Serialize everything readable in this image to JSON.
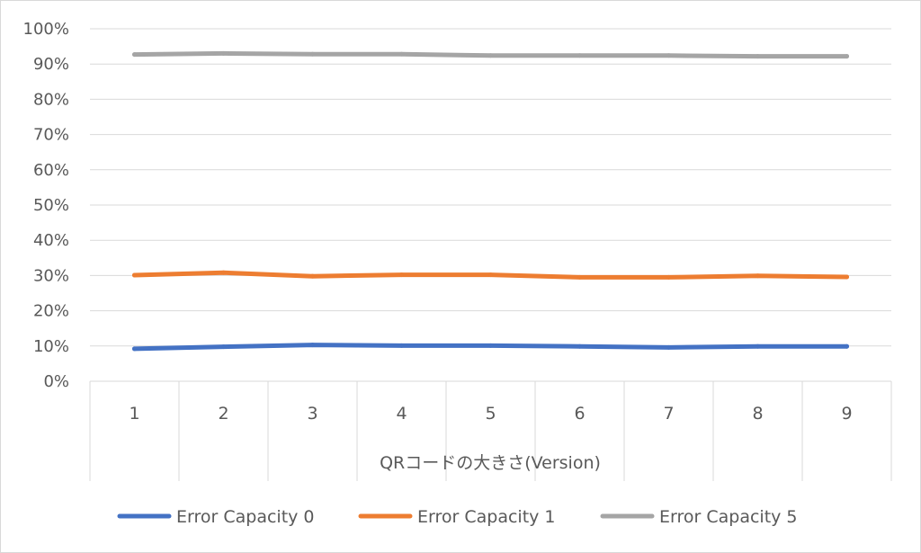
{
  "chart_data": {
    "type": "line",
    "title": "",
    "xlabel": "QRコードの大きさ(Version)",
    "ylabel": "",
    "categories": [
      "1",
      "2",
      "3",
      "4",
      "5",
      "6",
      "7",
      "8",
      "9"
    ],
    "ylim": [
      0,
      100
    ],
    "y_ticks": [
      "0%",
      "10%",
      "20%",
      "30%",
      "40%",
      "50%",
      "60%",
      "70%",
      "80%",
      "90%",
      "100%"
    ],
    "grid": true,
    "legend_position": "bottom",
    "series": [
      {
        "name": "Error Capacity 0",
        "color": "#4472c4",
        "values": [
          9.2,
          9.8,
          10.3,
          10.1,
          10.1,
          9.9,
          9.6,
          9.9,
          9.9
        ]
      },
      {
        "name": "Error Capacity 1",
        "color": "#ed7d31",
        "values": [
          30.1,
          30.8,
          29.8,
          30.2,
          30.2,
          29.5,
          29.5,
          29.9,
          29.6
        ]
      },
      {
        "name": "Error Capacity 5",
        "color": "#a5a5a5",
        "values": [
          92.7,
          93.0,
          92.8,
          92.8,
          92.4,
          92.4,
          92.4,
          92.2,
          92.2
        ]
      }
    ]
  }
}
